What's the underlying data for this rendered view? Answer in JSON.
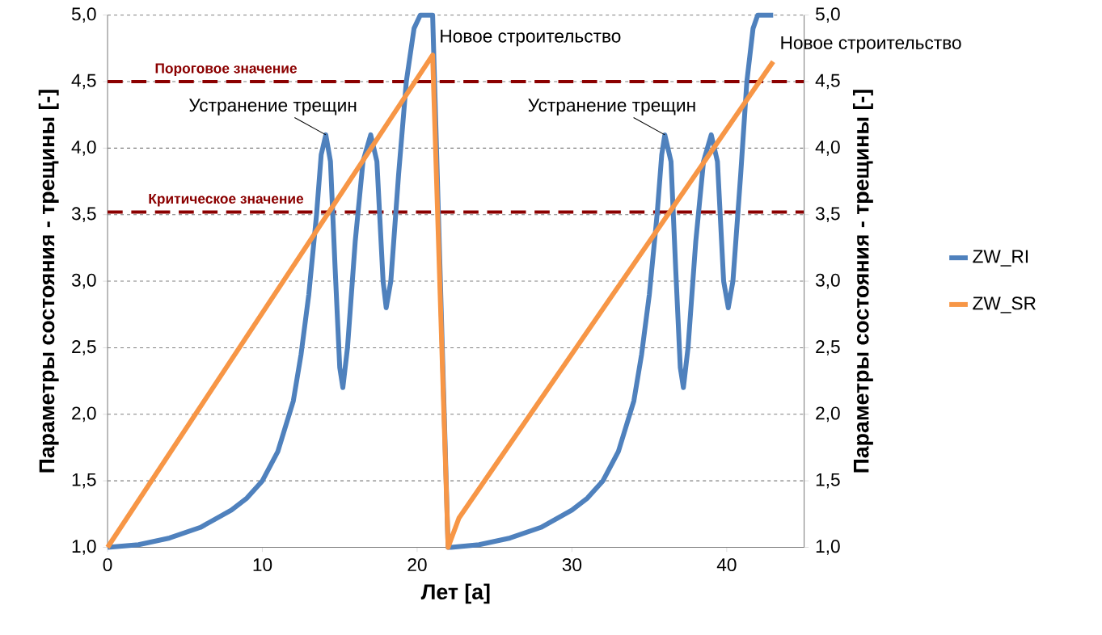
{
  "chart_data": {
    "type": "line",
    "xlabel": "Лет [a]",
    "ylabel": "Параметры состояния - трещины [-]",
    "y2label": "Параметры состояния - трещины [-]",
    "xlim": [
      0,
      45
    ],
    "xticks": [
      0,
      10,
      20,
      30,
      40
    ],
    "ylim": [
      1,
      5
    ],
    "yticks": [
      {
        "value": 1,
        "label": "1,0"
      },
      {
        "value": 1.5,
        "label": "1,5"
      },
      {
        "value": 2,
        "label": "2,0"
      },
      {
        "value": 2.5,
        "label": "2,5"
      },
      {
        "value": 3,
        "label": "3,0"
      },
      {
        "value": 3.5,
        "label": "3,5"
      },
      {
        "value": 4,
        "label": "4,0"
      },
      {
        "value": 4.5,
        "label": "4,5"
      },
      {
        "value": 5,
        "label": "5,0"
      }
    ],
    "y2lim": [
      1,
      5
    ],
    "y2ticks": [
      {
        "value": 1,
        "label": "1,0"
      },
      {
        "value": 1.5,
        "label": "1,5"
      },
      {
        "value": 2,
        "label": "2,0"
      },
      {
        "value": 2.5,
        "label": "2,5"
      },
      {
        "value": 3,
        "label": "3,0"
      },
      {
        "value": 3.5,
        "label": "3,5"
      },
      {
        "value": 4,
        "label": "4,0"
      },
      {
        "value": 4.5,
        "label": "4,5"
      },
      {
        "value": 5,
        "label": "5,0"
      }
    ],
    "grid": "y",
    "legend": "right",
    "marker": "none",
    "line_style": "solid",
    "series": [
      {
        "name": "ZW_RI",
        "color": "#4f81bd",
        "x": [
          0,
          2,
          4,
          6,
          8,
          9,
          10,
          11,
          12,
          12.5,
          13,
          13.5,
          13.8,
          14.1,
          14.4,
          14.7,
          15,
          15.2,
          15.5,
          16,
          16.5,
          17,
          17.4,
          17.8,
          18,
          18.3,
          18.8,
          19.3,
          19.8,
          20.2,
          21,
          22,
          22.2,
          24,
          26,
          28,
          30,
          31,
          32,
          33,
          34,
          34.5,
          35,
          35.5,
          35.8,
          36,
          36.4,
          36.7,
          37,
          37.2,
          37.5,
          38,
          38.5,
          39,
          39.4,
          39.8,
          40.1,
          40.4,
          40.9,
          41.3,
          41.7,
          42,
          43
        ],
        "values": [
          1,
          1.02,
          1.07,
          1.15,
          1.28,
          1.37,
          1.5,
          1.72,
          2.1,
          2.45,
          2.9,
          3.5,
          3.95,
          4.1,
          3.9,
          3.1,
          2.35,
          2.2,
          2.5,
          3.3,
          3.9,
          4.1,
          3.9,
          3.0,
          2.8,
          3.0,
          3.8,
          4.5,
          4.9,
          5,
          5,
          1,
          1,
          1.02,
          1.07,
          1.15,
          1.28,
          1.37,
          1.5,
          1.72,
          2.1,
          2.45,
          2.9,
          3.5,
          3.95,
          4.1,
          3.9,
          3.1,
          2.35,
          2.2,
          2.5,
          3.3,
          3.9,
          4.1,
          3.9,
          3.0,
          2.8,
          3.0,
          3.8,
          4.5,
          4.9,
          5,
          5
        ]
      },
      {
        "name": "ZW_SR",
        "color": "#f79646",
        "x": [
          0,
          21,
          22,
          22.7,
          43
        ],
        "values": [
          1,
          4.7,
          1,
          1.22,
          4.65
        ]
      }
    ],
    "ref_lines": [
      {
        "axis": "y",
        "value": 4.5,
        "label": "Пороговое значение",
        "color": "#8b0000",
        "line_style": "dashed"
      },
      {
        "axis": "y",
        "value": 3.52,
        "label": "Критическое значение",
        "color": "#8b0000",
        "line_style": "dashed"
      }
    ],
    "annotations": [
      {
        "text": "Новое строительство",
        "x": 21,
        "y": 4.7
      },
      {
        "text": "Устранение трещин",
        "x": 14.1,
        "y": 4.1
      },
      {
        "text": "Устранение трещин",
        "x": 36,
        "y": 4.1
      },
      {
        "text": "Новое строительство",
        "x": 43,
        "y": 4.65
      }
    ]
  }
}
